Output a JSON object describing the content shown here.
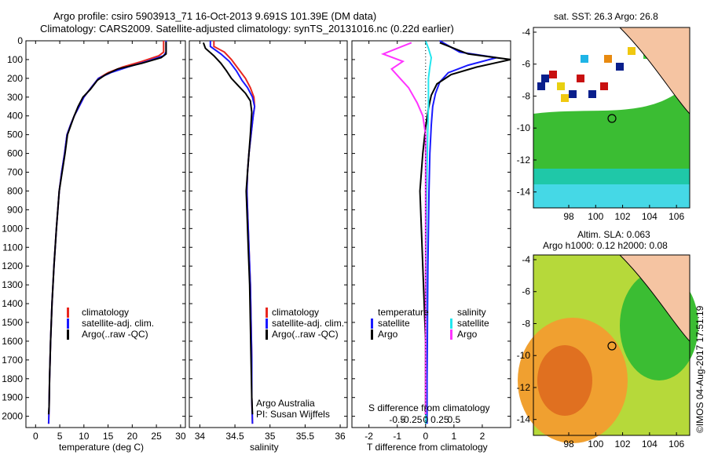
{
  "header": {
    "line1": "Argo profile: csiro 5903913_71 16-Oct-2013 9.691S 101.39E (DM data)",
    "line2": "Climatology: CARS2009. Satellite-adjusted climatology: synTS_20131016.nc (0.22d earlier)"
  },
  "colors": {
    "climatology": "#e8271f",
    "satellite": "#1a1aff",
    "argo": "#000000",
    "satellite_s": "#23e6ee",
    "argo_s": "#ff33ff",
    "land": "#f5c4a2"
  },
  "y_axis": {
    "ticks": [
      0,
      100,
      200,
      300,
      400,
      500,
      600,
      700,
      800,
      900,
      1000,
      1100,
      1200,
      1300,
      1400,
      1500,
      1600,
      1700,
      1800,
      1900,
      2000
    ]
  },
  "chart_data": [
    {
      "type": "line",
      "xlabel": "temperature (deg C)",
      "xlim": [
        -2,
        31
      ],
      "ylim": [
        2060,
        0
      ],
      "xticks": [
        0,
        5,
        10,
        15,
        20,
        25,
        30
      ],
      "legend": [
        "climatology",
        "satellite-adj. clim.",
        "Argo(..raw -QC)"
      ],
      "series": [
        {
          "name": "climatology",
          "x": [
            26.5,
            26.5,
            25.5,
            22,
            18,
            15,
            13,
            11.5,
            10,
            9,
            8,
            7.2,
            6.5,
            6,
            5.4,
            4.9,
            4.3,
            3.8,
            3.4,
            3.1,
            2.9,
            2.8,
            2.7
          ],
          "y": [
            0,
            60,
            80,
            110,
            140,
            170,
            200,
            250,
            300,
            350,
            400,
            450,
            500,
            600,
            700,
            800,
            1000,
            1200,
            1400,
            1600,
            1800,
            1950,
            2040
          ]
        },
        {
          "name": "satellite-adj. clim.",
          "x": [
            27,
            27,
            26.5,
            23,
            19,
            15.5,
            13,
            11.5,
            10,
            9,
            8,
            7.2,
            6.5,
            6,
            5.4,
            4.9,
            4.3,
            3.8,
            3.4,
            3.1,
            2.9,
            2.8,
            2.7
          ],
          "y": [
            0,
            60,
            80,
            110,
            140,
            170,
            200,
            250,
            300,
            350,
            400,
            450,
            500,
            600,
            700,
            800,
            1000,
            1200,
            1400,
            1600,
            1800,
            1950,
            2040
          ]
        },
        {
          "name": "Argo(..raw -QC)",
          "x": [
            27,
            27,
            26,
            22,
            17,
            14.5,
            12.8,
            11.3,
            9.8,
            8.8,
            8,
            7.3,
            6.6,
            6.1,
            5.5,
            4.9,
            4.3,
            3.8,
            3.4,
            3.1,
            2.9,
            2.8,
            2.7
          ],
          "y": [
            5,
            70,
            90,
            120,
            150,
            180,
            210,
            260,
            300,
            350,
            400,
            450,
            500,
            600,
            700,
            800,
            1000,
            1200,
            1400,
            1600,
            1800,
            1950,
            1990
          ]
        }
      ]
    },
    {
      "type": "line",
      "xlabel": "salinity",
      "xlim": [
        33.85,
        36.1
      ],
      "ylim": [
        2060,
        0
      ],
      "xticks": [
        34,
        34.5,
        35,
        35.5,
        36
      ],
      "legend": [
        "climatology",
        "satellite-adj. clim.",
        "Argo(..raw -QC)"
      ],
      "annotations": [
        "Argo Australia",
        "PI: Susan Wijffels"
      ],
      "series": [
        {
          "name": "climatology",
          "x": [
            34.2,
            34.2,
            34.35,
            34.45,
            34.55,
            34.65,
            34.72,
            34.77,
            34.78,
            34.76,
            34.73,
            34.7,
            34.68,
            34.67,
            34.68,
            34.7,
            34.72,
            34.73,
            34.74,
            34.74,
            34.75
          ],
          "y": [
            0,
            30,
            60,
            100,
            150,
            200,
            250,
            300,
            350,
            400,
            500,
            600,
            700,
            800,
            900,
            1100,
            1300,
            1500,
            1700,
            1900,
            2040
          ]
        },
        {
          "name": "satellite-adj. clim.",
          "x": [
            34.15,
            34.15,
            34.3,
            34.42,
            34.52,
            34.6,
            34.68,
            34.75,
            34.78,
            34.76,
            34.73,
            34.7,
            34.68,
            34.67,
            34.68,
            34.7,
            34.72,
            34.73,
            34.74,
            34.74,
            34.75
          ],
          "y": [
            0,
            30,
            70,
            110,
            160,
            210,
            250,
            300,
            350,
            400,
            500,
            600,
            700,
            800,
            900,
            1100,
            1300,
            1500,
            1700,
            1900,
            2040
          ]
        },
        {
          "name": "Argo(..raw -QC)",
          "x": [
            34.05,
            34.08,
            34.2,
            34.3,
            34.38,
            34.45,
            34.55,
            34.65,
            34.72,
            34.74,
            34.72,
            34.7,
            34.68,
            34.66,
            34.67,
            34.69,
            34.71,
            34.72,
            34.73,
            34.74,
            34.75
          ],
          "y": [
            10,
            40,
            80,
            120,
            160,
            200,
            240,
            280,
            320,
            380,
            500,
            600,
            700,
            800,
            900,
            1100,
            1300,
            1500,
            1700,
            1900,
            1990
          ]
        }
      ]
    },
    {
      "type": "line",
      "xlabel": "T difference from climatology",
      "xlabel_top": "S difference from climatology",
      "xlim": [
        -2.6,
        3.0
      ],
      "ylim": [
        2060,
        0
      ],
      "xticks": [
        -2,
        -1,
        0,
        1,
        2
      ],
      "xticks_top": [
        "-0.5",
        "-0.25",
        "0",
        "0.25",
        "0.5"
      ],
      "legend_left": [
        "temperature",
        "satellite",
        "Argo"
      ],
      "legend_right": [
        "salinity",
        "satellite",
        "Argo"
      ],
      "series": [
        {
          "name": "satellite",
          "x": [
            0.5,
            1.2,
            2.5,
            1.5,
            0.8,
            0.5,
            0.35,
            0.25,
            0.2,
            0.15,
            0.12,
            0.1,
            0.08,
            0.07,
            0.06,
            0.05,
            0.05
          ],
          "y": [
            0,
            60,
            90,
            130,
            170,
            220,
            280,
            350,
            450,
            600,
            800,
            1000,
            1200,
            1400,
            1600,
            1800,
            2040
          ]
        },
        {
          "name": "Argo",
          "x": [
            0.5,
            1.5,
            3.0,
            1.8,
            0.9,
            0.4,
            0.2,
            0.1,
            0.0,
            -0.1,
            -0.2,
            -0.15,
            -0.1,
            -0.05,
            0.0,
            0.0,
            0.0
          ],
          "y": [
            10,
            70,
            100,
            140,
            180,
            230,
            290,
            360,
            460,
            600,
            800,
            1000,
            1200,
            1400,
            1600,
            1800,
            1990
          ]
        },
        {
          "name": "satellite",
          "x": [
            0.0,
            0.1,
            0.2,
            0.15,
            0.1,
            0.1,
            0.1,
            0.08,
            0.06,
            0.04,
            0.03,
            0.02,
            0.02,
            0.01,
            0.01
          ],
          "y": [
            0,
            40,
            90,
            140,
            200,
            260,
            330,
            450,
            600,
            800,
            1000,
            1200,
            1400,
            1700,
            2040
          ]
        },
        {
          "name": "Argo",
          "x": [
            -0.5,
            -1.5,
            -0.8,
            -1.2,
            -0.9,
            -0.6,
            -0.3,
            -0.1,
            0.0,
            0.0,
            0.0,
            0.0,
            0.0,
            0.0
          ],
          "y": [
            10,
            70,
            110,
            150,
            200,
            250,
            330,
            400,
            500,
            700,
            1000,
            1300,
            1600,
            1990
          ]
        }
      ]
    }
  ],
  "map1": {
    "title": "sat. SST: 26.3 Argo: 26.8",
    "yticks": [
      "-4",
      "-6",
      "-8",
      "-10",
      "-12",
      "-14"
    ],
    "xticks": [
      "98",
      "100",
      "102",
      "104",
      "106"
    ]
  },
  "map2": {
    "title_line1": "Altim. SLA: 0.063",
    "title_line2": "Argo h1000: 0.12 h2000: 0.08",
    "yticks": [
      "-4",
      "-6",
      "-8",
      "-10",
      "-12",
      "-14"
    ],
    "xticks": [
      "98",
      "100",
      "102",
      "104",
      "106"
    ]
  },
  "credit": "©IMOS 04-Aug-2017 17:51:19"
}
